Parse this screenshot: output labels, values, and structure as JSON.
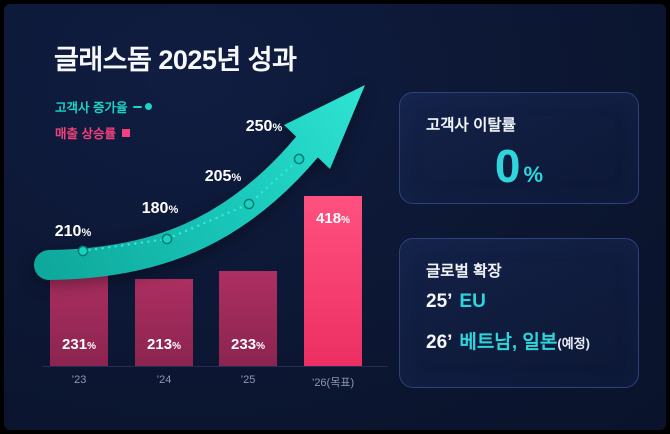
{
  "app": {
    "title": "글래스돔 2025년 성과"
  },
  "legend": [
    {
      "label": "고객사 증가율",
      "marker": "line-dot",
      "color": "#1fd2c6"
    },
    {
      "label": "매출 상승률",
      "marker": "square",
      "color": "#f2417c"
    }
  ],
  "chart_data": {
    "type": "bar",
    "title": "글래스돔 2025년 성과",
    "categories": [
      "’23",
      "’24",
      "’25",
      "’26(목표)"
    ],
    "series": [
      {
        "name": "매출 상승률",
        "type": "bar",
        "unit": "%",
        "values": [
          231,
          213,
          233,
          418
        ],
        "colors": {
          "default": "#9c2a56",
          "highlight": "#f8416f"
        }
      },
      {
        "name": "고객사 증가율",
        "type": "line",
        "unit": "%",
        "values": [
          210,
          180,
          205,
          250
        ],
        "color": "#1fd2c6",
        "style": "dotted-line-with-growth-arrow"
      }
    ],
    "ylim": [
      0,
      450
    ],
    "grid": false,
    "legend_position": "top-left"
  },
  "panels": {
    "churn": {
      "title": "고객사 이탈률",
      "value": "0",
      "unit": "%"
    },
    "global": {
      "title": "글로벌 확장",
      "items": [
        {
          "year": "25’",
          "region": "EU",
          "note": ""
        },
        {
          "year": "26’",
          "region": "베트남, 일본",
          "note": "(예정)"
        }
      ]
    }
  },
  "colors": {
    "background": "#0b152f",
    "accent_teal": "#1fd2c6",
    "accent_cyan": "#2ed6dc",
    "accent_pink": "#f2417c",
    "bar_default": "#9c2a56",
    "bar_highlight": "#f8416f"
  }
}
